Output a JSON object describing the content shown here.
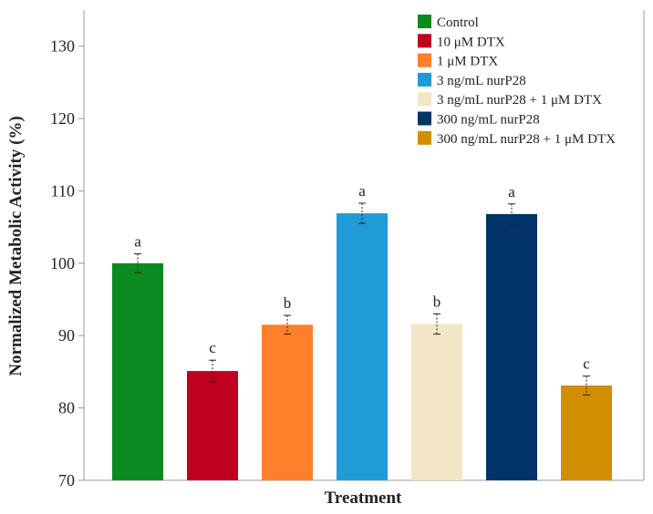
{
  "chart_data": {
    "type": "bar",
    "title": "",
    "xlabel": "Treatment",
    "ylabel": "Normalized Metabolic Activity (%)",
    "ylim": [
      70,
      135
    ],
    "yticks": [
      70,
      80,
      90,
      100,
      110,
      120,
      130
    ],
    "grid": false,
    "legend_position": "top-right",
    "categories": [
      "Control",
      "10 μM DTX",
      "1 μM DTX",
      "3 ng/mL nurP28",
      "3 ng/mL nurP28 + 1 μM DTX",
      "300 ng/mL nurP28",
      "300 ng/mL nurP28 + 1 μM DTX"
    ],
    "values": [
      100.0,
      85.1,
      91.5,
      106.9,
      91.6,
      106.8,
      83.1
    ],
    "errors": [
      1.3,
      1.5,
      1.3,
      1.4,
      1.4,
      1.4,
      1.3
    ],
    "significance_labels": [
      "a",
      "c",
      "b",
      "a",
      "b",
      "a",
      "c"
    ],
    "colors": [
      "#0a8a1f",
      "#c0001f",
      "#ff7f2a",
      "#1f9bd7",
      "#f3e6c6",
      "#003366",
      "#d18f00"
    ]
  }
}
